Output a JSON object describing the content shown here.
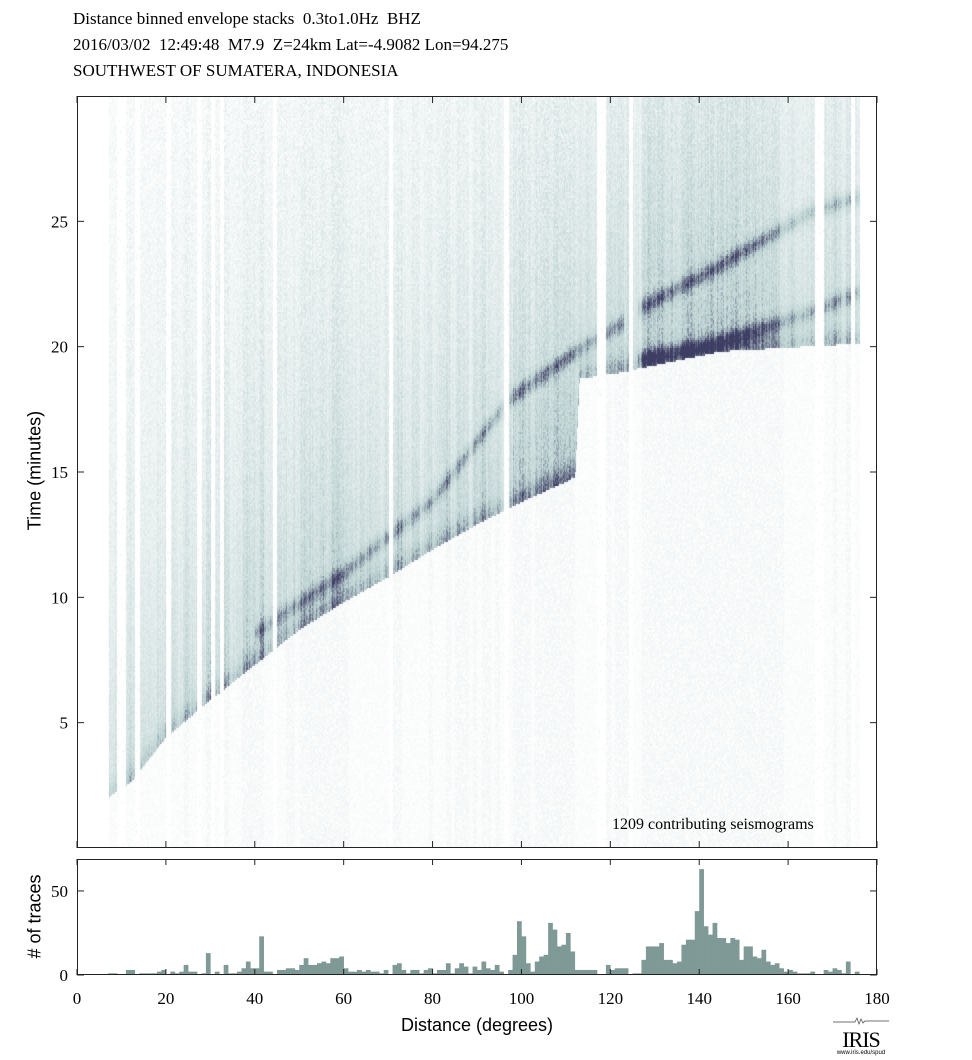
{
  "header": {
    "line1": "Distance binned envelope stacks  0.3to1.0Hz  BHZ",
    "line2": "2016/03/02  12:49:48  M7.9  Z=24km Lat=-4.9082 Lon=94.275",
    "line3": "SOUTHWEST OF SUMATERA, INDONESIA"
  },
  "annotation": "1209 contributing seismograms",
  "logo": {
    "text": "IRIS",
    "url_text": "www.iris.edu/spud"
  },
  "colors": {
    "low": "#ffffff",
    "mid": "#b9cfcf",
    "high": "#3e3d63",
    "bar": "#7f9996"
  },
  "chart_data": [
    {
      "type": "heatmap",
      "title": "Distance binned envelope stacks  0.3to1.0Hz  BHZ",
      "xlabel": "Distance (degrees)",
      "ylabel": "Time (minutes)",
      "xlim": [
        0,
        180
      ],
      "ylim": [
        0,
        30
      ],
      "yticks": [
        5,
        10,
        15,
        20,
        25
      ],
      "xticks": [
        0,
        20,
        40,
        60,
        80,
        100,
        120,
        140,
        160,
        180
      ],
      "first_arrival": [
        [
          7,
          2.2
        ],
        [
          12,
          2.8
        ],
        [
          20,
          4.6
        ],
        [
          30,
          6.1
        ],
        [
          40,
          7.5
        ],
        [
          50,
          8.9
        ],
        [
          60,
          10.0
        ],
        [
          70,
          11.0
        ],
        [
          80,
          12.1
        ],
        [
          90,
          13.1
        ],
        [
          100,
          14.0
        ],
        [
          110,
          14.8
        ],
        [
          112,
          15.0
        ],
        [
          113,
          18.9
        ],
        [
          124,
          19.2
        ],
        [
          126,
          19.3
        ],
        [
          145,
          20.0
        ],
        [
          175,
          20.3
        ]
      ],
      "phases": [
        {
          "name": "later-branch",
          "points": [
            [
              40,
              8.6
            ],
            [
              60,
              11.0
            ],
            [
              80,
              13.9
            ],
            [
              97,
              17.9
            ],
            [
              112,
              19.8
            ],
            [
              123,
              21.0
            ]
          ]
        },
        {
          "name": "upper-branch",
          "points": [
            [
              126,
              21.5
            ],
            [
              143,
              23.1
            ],
            [
              165,
              25.4
            ],
            [
              176,
              26.0
            ]
          ]
        },
        {
          "name": "lower-branch",
          "points": [
            [
              126,
              19.5
            ],
            [
              143,
              20.1
            ],
            [
              165,
              21.4
            ],
            [
              176,
              22.2
            ]
          ]
        }
      ]
    },
    {
      "type": "bar",
      "xlabel": "Distance (degrees)",
      "ylabel": "# of traces",
      "xlim": [
        0,
        180
      ],
      "ylim": [
        0,
        69
      ],
      "yticks": [
        0,
        50
      ],
      "bin_width": 1,
      "bin_start": 7,
      "values": [
        1,
        1,
        0,
        0,
        3,
        3,
        0,
        1,
        1,
        1,
        1,
        2,
        3,
        0,
        2,
        1,
        2,
        6,
        2,
        2,
        0,
        1,
        13,
        0,
        2,
        0,
        6,
        1,
        1,
        2,
        4,
        8,
        4,
        4,
        23,
        2,
        2,
        0,
        3,
        3,
        4,
        4,
        3,
        6,
        10,
        6,
        6,
        7,
        8,
        7,
        10,
        10,
        11,
        4,
        2,
        2,
        3,
        2,
        3,
        2,
        2,
        1,
        3,
        0,
        6,
        7,
        3,
        1,
        3,
        3,
        1,
        3,
        4,
        1,
        3,
        3,
        7,
        1,
        4,
        7,
        5,
        1,
        5,
        3,
        8,
        4,
        3,
        6,
        2,
        0,
        3,
        12,
        32,
        23,
        7,
        2,
        8,
        11,
        12,
        31,
        27,
        17,
        18,
        25,
        14,
        3,
        3,
        3,
        3,
        3,
        0,
        0,
        6,
        3,
        4,
        4,
        4,
        0,
        1,
        1,
        9,
        17,
        17,
        17,
        19,
        9,
        9,
        7,
        8,
        18,
        21,
        21,
        38,
        63,
        29,
        24,
        31,
        22,
        22,
        19,
        22,
        21,
        9,
        17,
        17,
        11,
        10,
        15,
        8,
        6,
        7,
        4,
        2,
        3,
        2,
        1,
        1,
        1,
        2,
        0,
        0,
        3,
        2,
        4,
        3,
        1,
        8,
        0,
        2
      ]
    }
  ]
}
